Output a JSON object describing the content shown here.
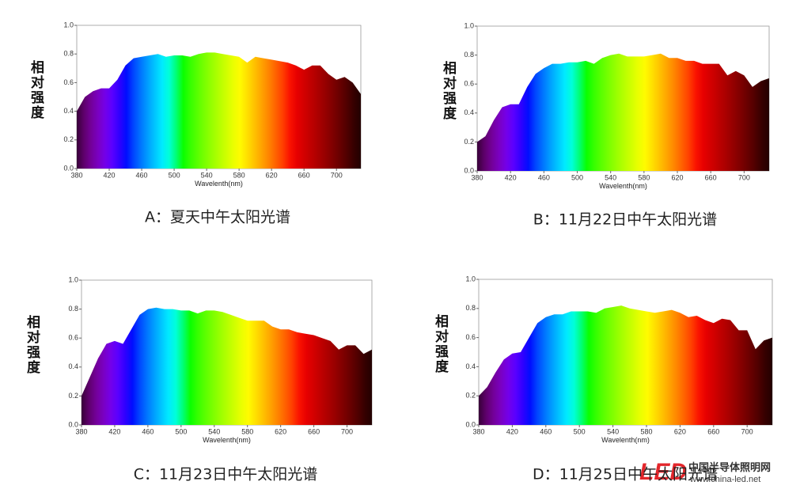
{
  "chart_data": [
    {
      "type": "area",
      "title": "A：夏天中午太阳光谱",
      "ylabel": "相对强度",
      "xlabel": "Wavelenth(nm)",
      "x": [
        380,
        390,
        400,
        410,
        420,
        430,
        440,
        450,
        460,
        470,
        480,
        490,
        500,
        510,
        520,
        530,
        540,
        550,
        560,
        570,
        580,
        590,
        600,
        610,
        620,
        630,
        640,
        650,
        660,
        670,
        680,
        690,
        700,
        710,
        720,
        730
      ],
      "values": [
        0.4,
        0.5,
        0.54,
        0.56,
        0.56,
        0.62,
        0.72,
        0.77,
        0.78,
        0.79,
        0.8,
        0.78,
        0.79,
        0.79,
        0.78,
        0.8,
        0.81,
        0.81,
        0.8,
        0.79,
        0.78,
        0.74,
        0.78,
        0.77,
        0.76,
        0.75,
        0.74,
        0.72,
        0.69,
        0.72,
        0.72,
        0.66,
        0.62,
        0.64,
        0.6,
        0.52
      ],
      "xlim": [
        380,
        730
      ],
      "xticks": [
        380,
        420,
        460,
        500,
        540,
        580,
        620,
        660,
        700
      ],
      "ylim": [
        0,
        1
      ],
      "yticks": [
        {
          "value": 0,
          "label": "0.0"
        },
        0.2,
        0.4,
        0.6,
        0.8,
        {
          "value": 1,
          "label": "1.0"
        }
      ]
    },
    {
      "type": "area",
      "title": "B：11月22日中午太阳光谱",
      "ylabel": "相对强度",
      "xlabel": "Wavelenth(nm)",
      "x": [
        380,
        390,
        400,
        410,
        420,
        430,
        440,
        450,
        460,
        470,
        480,
        490,
        500,
        510,
        520,
        530,
        540,
        550,
        560,
        570,
        580,
        590,
        600,
        610,
        620,
        630,
        640,
        650,
        660,
        670,
        680,
        690,
        700,
        710,
        720,
        730
      ],
      "values": [
        0.2,
        0.24,
        0.35,
        0.44,
        0.46,
        0.46,
        0.58,
        0.67,
        0.71,
        0.74,
        0.74,
        0.75,
        0.75,
        0.76,
        0.74,
        0.78,
        0.8,
        0.81,
        0.79,
        0.79,
        0.79,
        0.8,
        0.81,
        0.78,
        0.78,
        0.76,
        0.76,
        0.74,
        0.74,
        0.74,
        0.66,
        0.69,
        0.66,
        0.58,
        0.62,
        0.64
      ],
      "xlim": [
        380,
        730
      ],
      "xticks": [
        380,
        420,
        460,
        500,
        540,
        580,
        620,
        660,
        700
      ],
      "ylim": [
        0,
        1
      ],
      "yticks": [
        {
          "value": 0,
          "label": "0.0"
        },
        0.2,
        0.4,
        0.6,
        0.8,
        {
          "value": 1,
          "label": "1.0"
        }
      ]
    },
    {
      "type": "area",
      "title": "C：11月23日中午太阳光谱",
      "ylabel": "相对强度",
      "xlabel": "Wavelenth(nm)",
      "x": [
        380,
        390,
        400,
        410,
        420,
        430,
        440,
        450,
        460,
        470,
        480,
        490,
        500,
        510,
        520,
        530,
        540,
        550,
        560,
        570,
        580,
        590,
        600,
        610,
        620,
        630,
        640,
        650,
        660,
        670,
        680,
        690,
        700,
        710,
        720,
        730
      ],
      "values": [
        0.2,
        0.33,
        0.46,
        0.56,
        0.58,
        0.56,
        0.66,
        0.76,
        0.8,
        0.81,
        0.8,
        0.8,
        0.79,
        0.79,
        0.77,
        0.79,
        0.79,
        0.78,
        0.76,
        0.74,
        0.72,
        0.72,
        0.72,
        0.68,
        0.66,
        0.66,
        0.64,
        0.63,
        0.62,
        0.6,
        0.58,
        0.52,
        0.55,
        0.55,
        0.49,
        0.52
      ],
      "xlim": [
        380,
        730
      ],
      "xticks": [
        380,
        420,
        460,
        500,
        540,
        580,
        620,
        660,
        700
      ],
      "ylim": [
        0,
        1
      ],
      "yticks": [
        {
          "value": 0,
          "label": "0.0"
        },
        0.2,
        0.4,
        0.6,
        0.8,
        {
          "value": 1,
          "label": "1.0"
        }
      ]
    },
    {
      "type": "area",
      "title": "D：11月25日中午太阳光谱",
      "ylabel": "相对强度",
      "xlabel": "Wavelenth(nm)",
      "x": [
        380,
        390,
        400,
        410,
        420,
        430,
        440,
        450,
        460,
        470,
        480,
        490,
        500,
        510,
        520,
        530,
        540,
        550,
        560,
        570,
        580,
        590,
        600,
        610,
        620,
        630,
        640,
        650,
        660,
        670,
        680,
        690,
        700,
        710,
        720,
        730
      ],
      "values": [
        0.2,
        0.26,
        0.36,
        0.45,
        0.49,
        0.5,
        0.6,
        0.7,
        0.74,
        0.76,
        0.76,
        0.78,
        0.78,
        0.78,
        0.77,
        0.8,
        0.81,
        0.82,
        0.8,
        0.79,
        0.78,
        0.77,
        0.78,
        0.79,
        0.77,
        0.74,
        0.75,
        0.72,
        0.7,
        0.73,
        0.72,
        0.65,
        0.65,
        0.52,
        0.58,
        0.6
      ],
      "xlim": [
        380,
        730
      ],
      "xticks": [
        380,
        420,
        460,
        500,
        540,
        580,
        620,
        660,
        700
      ],
      "ylim": [
        0,
        1
      ],
      "yticks": [
        {
          "value": 0,
          "label": "0.0"
        },
        0.2,
        0.4,
        0.6,
        0.8,
        {
          "value": 1,
          "label": "1.0"
        }
      ]
    }
  ],
  "watermark": {
    "logo": "LED",
    "name": "中国半导体照明网",
    "url": "www.china-led.net"
  }
}
